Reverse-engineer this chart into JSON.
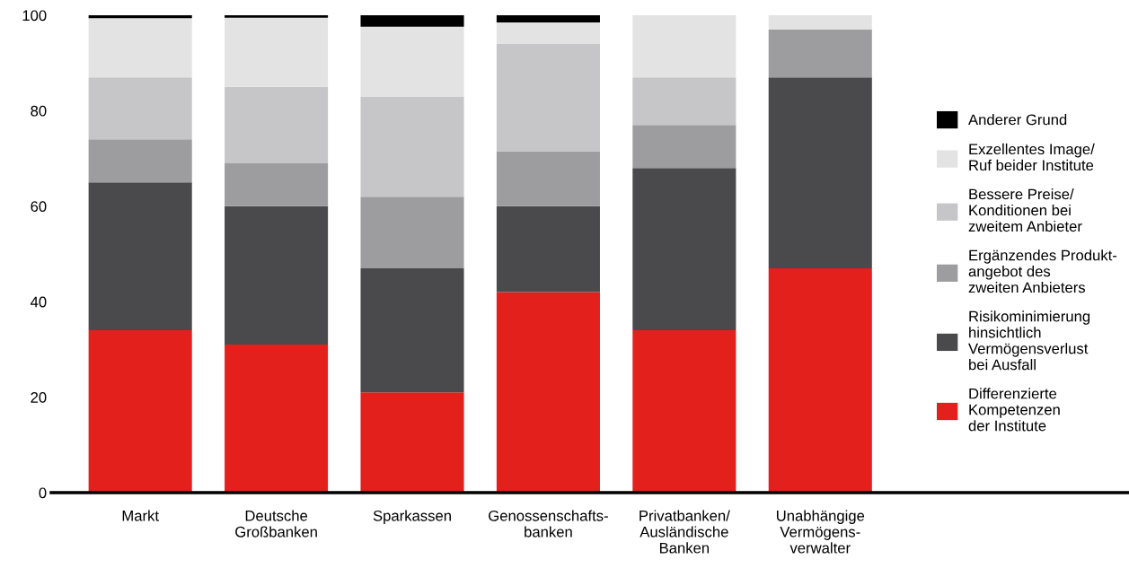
{
  "chart_data": {
    "type": "bar",
    "stacked": true,
    "categories": [
      "Markt",
      "Deutsche\nGroßbanken",
      "Sparkassen",
      "Genossenschafts-\nbanken",
      "Privatbanken/\nAusländische\nBanken",
      "Unabhängige\nVermögens-\nverwalter"
    ],
    "series": [
      {
        "name": "Differenzierte\nKompetenzen\nder Institute",
        "color": "#e3201b",
        "values": [
          34,
          31,
          21,
          42,
          34,
          47
        ]
      },
      {
        "name": "Risikominimierung\nhinsichtlich\nVermögensverlust\nbei Ausfall",
        "color": "#4a4a4c",
        "values": [
          31,
          29,
          26,
          18,
          34,
          40
        ]
      },
      {
        "name": "Ergänzendes Produkt-\nangebot des\nzweiten Anbieters",
        "color": "#9d9d9f",
        "values": [
          9,
          9,
          15,
          11.5,
          9,
          10
        ]
      },
      {
        "name": "Bessere Preise/\nKonditionen bei\nzweitem Anbieter",
        "color": "#c6c6c8",
        "values": [
          13,
          16,
          21,
          22.5,
          10,
          0
        ]
      },
      {
        "name": "Exzellentes Image/\nRuf beider Institute",
        "color": "#e3e3e3",
        "values": [
          12.4,
          14.5,
          14.6,
          4.5,
          13,
          3
        ]
      },
      {
        "name": "Anderer Grund",
        "color": "#000000",
        "values": [
          0.6,
          0.5,
          2.4,
          1.5,
          0,
          0
        ]
      }
    ],
    "ylim": [
      0,
      100
    ],
    "yticks": [
      0,
      20,
      40,
      60,
      80,
      100
    ],
    "grid": false,
    "legend": "right"
  }
}
